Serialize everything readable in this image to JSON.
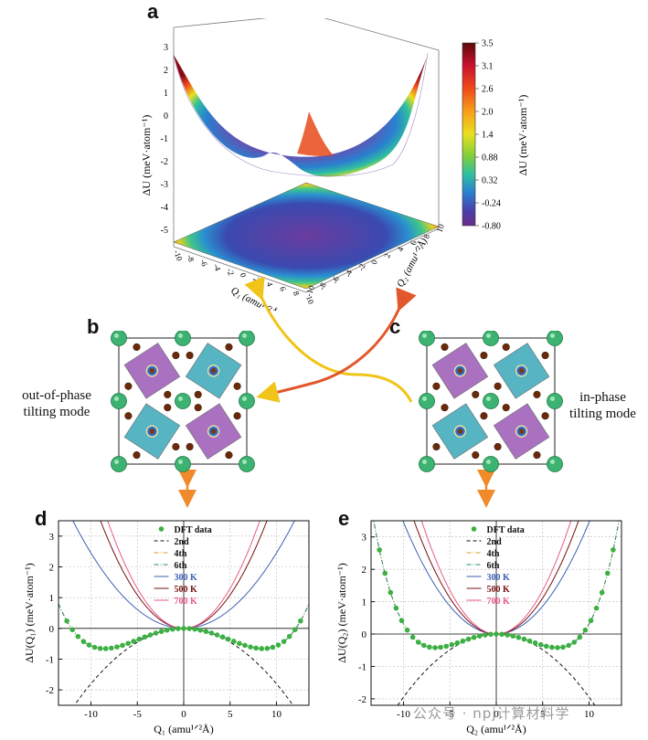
{
  "panels": {
    "a": "a",
    "b": "b",
    "c": "c",
    "d": "d",
    "e": "e"
  },
  "panel_a": {
    "zlabel": "ΔU (meV·atom⁻¹)",
    "zticks": [
      "-5",
      "-4",
      "-3",
      "-2",
      "-1",
      "0",
      "1",
      "2",
      "3"
    ],
    "q1_label": "Q₁ (amu¹ᐟ²Å)",
    "q2_label": "Q₂ (amu¹ᐟ²Å)",
    "q_ticks": [
      "-10",
      "-8",
      "-6",
      "-4",
      "-2",
      "0",
      "2",
      "4",
      "6",
      "8",
      "10"
    ],
    "colorbar_label": "ΔU (meV·atom⁻¹)",
    "colorbar_ticks": [
      "3.5",
      "3.1",
      "2.6",
      "2.0",
      "1.4",
      "0.88",
      "0.32",
      "-0.24",
      "-0.80"
    ],
    "colorbar_colors": [
      "#5a0a0a",
      "#c8102e",
      "#f04a1a",
      "#f7a21b",
      "#e8e01e",
      "#7fce3c",
      "#2fbfa0",
      "#2a7fd0",
      "#4a3fa8",
      "#6a2c8c"
    ]
  },
  "panel_b": {
    "label_line1": "out-of-phase",
    "label_line2": "tilting mode"
  },
  "panel_c": {
    "label_line1": "in-phase",
    "label_line2": "tilting mode"
  },
  "watermark": "公众号 · npj计算材料学",
  "chart_data": [
    {
      "type": "line",
      "panel": "d",
      "xlabel": "Q₁ (amu¹ᐟ²Å)",
      "ylabel": "ΔU(Q₁) (meV·atom⁻¹)",
      "xlim": [
        -13.5,
        13.5
      ],
      "ylim": [
        -2.5,
        3.5
      ],
      "xticks": [
        -10,
        -5,
        0,
        5,
        10
      ],
      "yticks": [
        -2,
        -1,
        0,
        1,
        2,
        3
      ],
      "grid": true,
      "legend_position": "top-center",
      "legend": [
        "DFT data",
        "2nd",
        "4th",
        "6th",
        "300 K",
        "500 K",
        "700 K"
      ],
      "dft_x": [
        -12.6,
        -12,
        -11.4,
        -10.8,
        -10.2,
        -9.6,
        -9,
        -8.4,
        -7.8,
        -7.2,
        -6.6,
        -6,
        -5.4,
        -4.8,
        -4.2,
        -3.6,
        -3,
        -2.4,
        -1.8,
        -1.2,
        -0.6,
        0,
        0.6,
        1.2,
        1.8,
        2.4,
        3,
        3.6,
        4.2,
        4.8,
        5.4,
        6,
        6.6,
        7.2,
        7.8,
        8.4,
        9,
        9.6,
        10.2,
        10.8,
        11.4,
        12,
        12.6
      ],
      "series": [
        {
          "name": "DFT data",
          "color": "#3cb043",
          "style": "points"
        },
        {
          "name": "2nd",
          "color": "#111111",
          "style": "dashed",
          "a2": -0.018,
          "a4": 0,
          "a6": 0
        },
        {
          "name": "4th",
          "color": "#e09a1a",
          "style": "dashdot",
          "a2": -0.018,
          "a4": 0.000123,
          "a6": 0
        },
        {
          "name": "6th",
          "color": "#2a8a6a",
          "style": "dashdot",
          "a2": -0.018,
          "a4": 0.000123,
          "a6": 0
        },
        {
          "name": "300 K",
          "color": "#3a5fb5",
          "style": "solid",
          "k": 0.0245
        },
        {
          "name": "500 K",
          "color": "#7a1010",
          "style": "solid",
          "k": 0.0435
        },
        {
          "name": "700 K",
          "color": "#e85a8a",
          "style": "solid",
          "k": 0.052
        }
      ]
    },
    {
      "type": "line",
      "panel": "e",
      "xlabel": "Q₂ (amu¹ᐟ²Å)",
      "ylabel": "ΔU(Q₂) (meV·atom⁻¹)",
      "xlim": [
        -13.5,
        13.5
      ],
      "ylim": [
        -2.2,
        3.5
      ],
      "xticks": [
        -10,
        -5,
        0,
        5,
        10
      ],
      "yticks": [
        -2,
        -1,
        0,
        1,
        2,
        3
      ],
      "grid": true,
      "legend_position": "top-center",
      "legend": [
        "DFT data",
        "2nd",
        "4th",
        "6th",
        "300 K",
        "500 K",
        "700 K"
      ],
      "dft_x": [
        -12.6,
        -12,
        -11.4,
        -10.8,
        -10.2,
        -9.6,
        -9,
        -8.4,
        -7.8,
        -7.2,
        -6.6,
        -6,
        -5.4,
        -4.8,
        -4.2,
        -3.6,
        -3,
        -2.4,
        -1.8,
        -1.2,
        -0.6,
        0,
        0.6,
        1.2,
        1.8,
        2.4,
        3,
        3.6,
        4.2,
        4.8,
        5.4,
        6,
        6.6,
        7.2,
        7.8,
        8.4,
        9,
        9.6,
        10.2,
        10.8,
        11.4,
        12,
        12.6
      ],
      "series": [
        {
          "name": "DFT data",
          "color": "#3cb043",
          "style": "points"
        },
        {
          "name": "2nd",
          "color": "#111111",
          "style": "dashed",
          "a2": -0.0195,
          "a4": 0,
          "a6": 0
        },
        {
          "name": "4th",
          "color": "#e09a1a",
          "style": "dashdot",
          "a2": -0.0195,
          "a4": 0.000226,
          "a6": 0
        },
        {
          "name": "6th",
          "color": "#2a8a6a",
          "style": "dashdot",
          "a2": -0.0195,
          "a4": 0.000226,
          "a6": 0
        },
        {
          "name": "300 K",
          "color": "#3a5fb5",
          "style": "solid",
          "k": 0.0345
        },
        {
          "name": "500 K",
          "color": "#7a1010",
          "style": "solid",
          "k": 0.0445
        },
        {
          "name": "700 K",
          "color": "#e85a8a",
          "style": "solid",
          "k": 0.054
        }
      ]
    }
  ]
}
